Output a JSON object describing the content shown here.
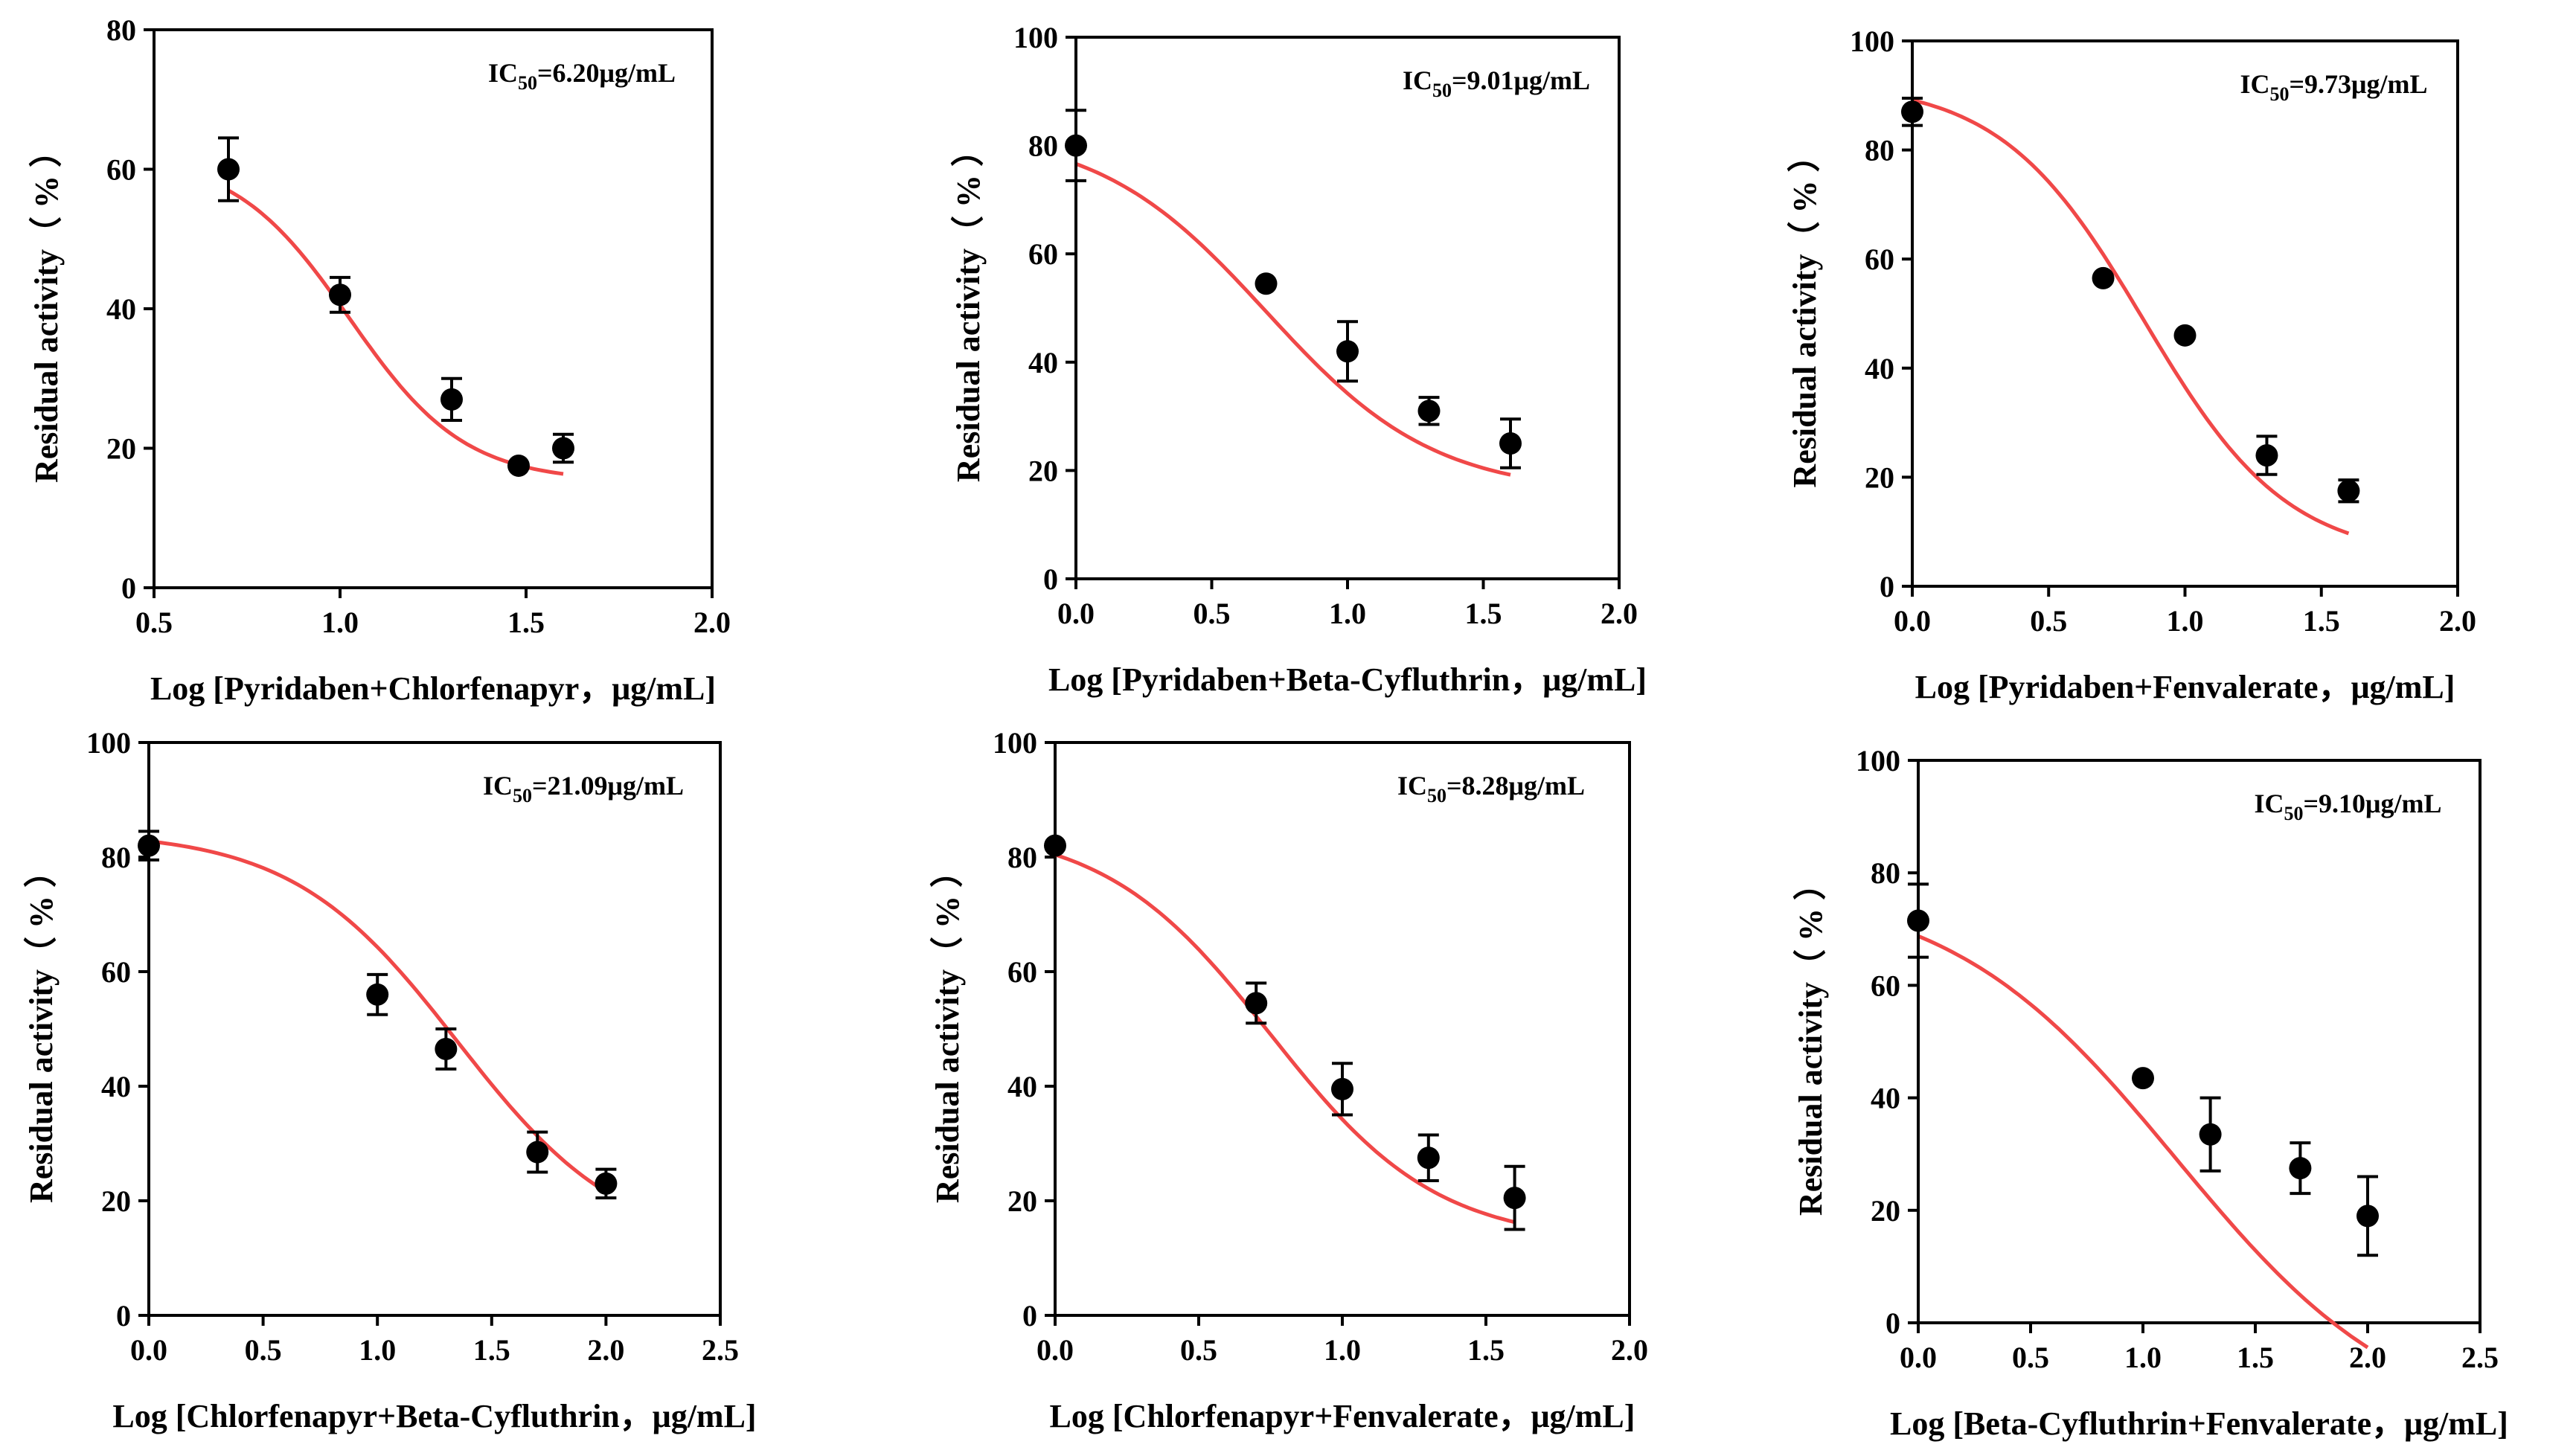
{
  "figure": {
    "y_axis_label": "Residual activity（ % ）",
    "point_color": "#000000",
    "curve_color": "#f04848"
  },
  "chart_data": [
    {
      "type": "scatter",
      "title": "",
      "xlabel": "Log [Pyridaben+Chlorfenapyr，μg/mL]",
      "ylabel": "Residual activity（ % ）",
      "xlim": [
        0.5,
        2.0
      ],
      "ylim": [
        0,
        80
      ],
      "x_ticks": [
        "0.5",
        "1.0",
        "1.5",
        "2.0"
      ],
      "y_ticks": [
        "0",
        "20",
        "40",
        "60",
        "80"
      ],
      "ic50": {
        "prefix": "IC",
        "sub": "50",
        "value": "=6.20μg/mL"
      },
      "x": [
        0.7,
        1.0,
        1.3,
        1.48,
        1.6
      ],
      "y": [
        60,
        42,
        27,
        17.5,
        20
      ],
      "err": [
        4.5,
        2.5,
        3,
        0,
        2
      ],
      "curve": {
        "top": 62.1,
        "bottom": 15.2,
        "logic50": 1.025,
        "hill": -2.8
      }
    },
    {
      "type": "scatter",
      "title": "",
      "xlabel": "Log [Pyridaben+Beta-Cyfluthrin，μg/mL]",
      "ylabel": "Residual activity（ % ）",
      "xlim": [
        0.0,
        2.0
      ],
      "ylim": [
        0,
        100
      ],
      "x_ticks": [
        "0.0",
        "0.5",
        "1.0",
        "1.5",
        "2.0"
      ],
      "y_ticks": [
        "0",
        "20",
        "40",
        "60",
        "80",
        "100"
      ],
      "ic50": {
        "prefix": "IC",
        "sub": "50",
        "value": "=9.01μg/mL"
      },
      "x": [
        0.0,
        0.7,
        1.0,
        1.3,
        1.6
      ],
      "y": [
        80,
        54.5,
        42,
        31,
        25
      ],
      "err": [
        6.5,
        0,
        5.5,
        2.5,
        4.5
      ],
      "curve": {
        "top": 83,
        "bottom": 15.7,
        "logic50": 0.7,
        "hill": -1.4
      }
    },
    {
      "type": "scatter",
      "title": "",
      "xlabel": "Log [Pyridaben+Fenvalerate，μg/mL]",
      "ylabel": "Residual activity（ % ）",
      "xlim": [
        0.0,
        2.0
      ],
      "ylim": [
        0,
        100
      ],
      "x_ticks": [
        "0.0",
        "0.5",
        "1.0",
        "1.5",
        "2.0"
      ],
      "y_ticks": [
        "0",
        "20",
        "40",
        "60",
        "80",
        "100"
      ],
      "ic50": {
        "prefix": "IC",
        "sub": "50",
        "value": "=9.73μg/mL"
      },
      "x": [
        0.0,
        0.7,
        1.0,
        1.3,
        1.6
      ],
      "y": [
        87,
        56.5,
        46,
        24,
        17.5
      ],
      "err": [
        2.5,
        0,
        0,
        3.5,
        2
      ],
      "curve": {
        "top": 92.5,
        "bottom": 4.9,
        "logic50": 0.85,
        "hill": -1.65
      }
    },
    {
      "type": "scatter",
      "title": "",
      "xlabel": "Log [Chlorfenapyr+Beta-Cyfluthrin，μg/mL]",
      "ylabel": "Residual activity（ % ）",
      "xlim": [
        0.0,
        2.5
      ],
      "ylim": [
        0,
        100
      ],
      "x_ticks": [
        "0.0",
        "0.5",
        "1.0",
        "1.5",
        "2.0",
        "2.5"
      ],
      "y_ticks": [
        "0",
        "20",
        "40",
        "60",
        "80",
        "100"
      ],
      "ic50": {
        "prefix": "IC",
        "sub": "50",
        "value": "=21.09μg/mL"
      },
      "x": [
        0.0,
        1.0,
        1.3,
        1.7,
        2.0
      ],
      "y": [
        82,
        56,
        46.5,
        28.5,
        23
      ],
      "err": [
        2.5,
        3.5,
        3.5,
        3.5,
        2.5
      ],
      "curve": {
        "top": 84.5,
        "bottom": 11.1,
        "logic50": 1.35,
        "hill": -1.2
      }
    },
    {
      "type": "scatter",
      "title": "",
      "xlabel": "Log [Chlorfenapyr+Fenvalerate，μg/mL]",
      "ylabel": "Residual activity（ % ）",
      "xlim": [
        0.0,
        2.0
      ],
      "ylim": [
        0,
        100
      ],
      "x_ticks": [
        "0.0",
        "0.5",
        "1.0",
        "1.5",
        "2.0"
      ],
      "y_ticks": [
        "0",
        "20",
        "40",
        "60",
        "80",
        "100"
      ],
      "ic50": {
        "prefix": "IC",
        "sub": "50",
        "value": "=8.28μg/mL"
      },
      "x": [
        0.0,
        0.7,
        1.0,
        1.3,
        1.6
      ],
      "y": [
        82,
        54.5,
        39.5,
        27.5,
        20.5
      ],
      "err": [
        0,
        3.5,
        4.5,
        4,
        5.5
      ],
      "curve": {
        "top": 85.5,
        "bottom": 12.6,
        "logic50": 0.75,
        "hill": -1.5
      }
    },
    {
      "type": "scatter",
      "title": "",
      "xlabel": "Log [Beta-Cyfluthrin+Fenvalerate，μg/mL]",
      "ylabel": "Residual activity（ % ）",
      "xlim": [
        0.0,
        2.5
      ],
      "ylim": [
        0,
        100
      ],
      "x_ticks": [
        "0.0",
        "0.5",
        "1.0",
        "1.5",
        "2.0",
        "2.5"
      ],
      "y_ticks": [
        "0",
        "20",
        "40",
        "60",
        "80",
        "100"
      ],
      "ic50": {
        "prefix": "IC",
        "sub": "50",
        "value": "=9.10μg/mL"
      },
      "x": [
        0.0,
        1.0,
        1.3,
        1.7,
        2.0
      ],
      "y": [
        71.5,
        43.5,
        33.5,
        27.5,
        19
      ],
      "err": [
        6.5,
        0,
        6.5,
        4.5,
        7
      ],
      "curve": {
        "top": 78.1,
        "bottom": -20,
        "logic50": 1.15,
        "hill": -0.85
      }
    }
  ]
}
